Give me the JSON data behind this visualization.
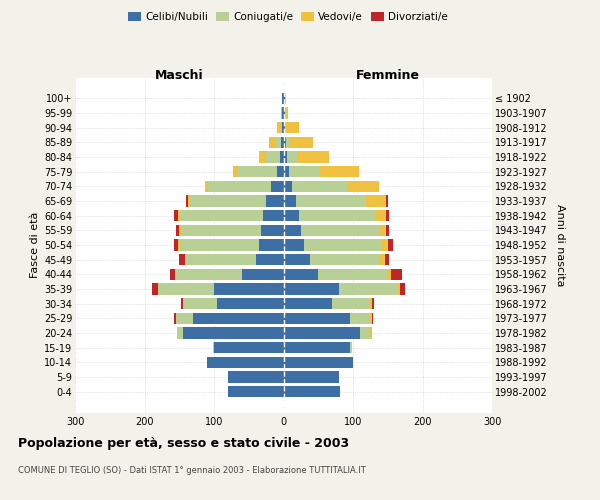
{
  "age_groups": [
    "0-4",
    "5-9",
    "10-14",
    "15-19",
    "20-24",
    "25-29",
    "30-34",
    "35-39",
    "40-44",
    "45-49",
    "50-54",
    "55-59",
    "60-64",
    "65-69",
    "70-74",
    "75-79",
    "80-84",
    "85-89",
    "90-94",
    "95-99",
    "100+"
  ],
  "birth_years": [
    "1998-2002",
    "1993-1997",
    "1988-1992",
    "1983-1987",
    "1978-1982",
    "1973-1977",
    "1968-1972",
    "1963-1967",
    "1958-1962",
    "1953-1957",
    "1948-1952",
    "1943-1947",
    "1938-1942",
    "1933-1937",
    "1928-1932",
    "1923-1927",
    "1918-1922",
    "1913-1917",
    "1908-1912",
    "1903-1907",
    "≤ 1902"
  ],
  "maschi": {
    "celibi": [
      80,
      80,
      110,
      100,
      145,
      130,
      95,
      100,
      60,
      40,
      35,
      33,
      30,
      25,
      18,
      10,
      5,
      3,
      2,
      2,
      2
    ],
    "coniugati": [
      0,
      0,
      0,
      2,
      8,
      25,
      50,
      80,
      95,
      100,
      115,
      115,
      120,
      110,
      90,
      55,
      20,
      8,
      2,
      0,
      0
    ],
    "vedovi": [
      0,
      0,
      0,
      0,
      0,
      0,
      0,
      1,
      1,
      2,
      2,
      2,
      2,
      3,
      5,
      8,
      10,
      10,
      5,
      2,
      0
    ],
    "divorziati": [
      0,
      0,
      0,
      0,
      0,
      2,
      3,
      8,
      8,
      8,
      5,
      5,
      5,
      2,
      0,
      0,
      0,
      0,
      0,
      0,
      0
    ]
  },
  "femmine": {
    "nubili": [
      82,
      80,
      100,
      95,
      110,
      95,
      70,
      80,
      50,
      38,
      30,
      25,
      22,
      18,
      12,
      8,
      5,
      3,
      2,
      2,
      2
    ],
    "coniugate": [
      0,
      0,
      0,
      3,
      15,
      30,
      55,
      85,
      100,
      100,
      112,
      112,
      110,
      100,
      80,
      45,
      15,
      5,
      2,
      0,
      0
    ],
    "vedove": [
      0,
      0,
      0,
      0,
      2,
      2,
      2,
      2,
      5,
      8,
      8,
      10,
      15,
      30,
      45,
      55,
      45,
      35,
      18,
      5,
      2
    ],
    "divorziate": [
      0,
      0,
      0,
      0,
      0,
      2,
      3,
      8,
      15,
      6,
      8,
      5,
      5,
      2,
      0,
      0,
      0,
      0,
      0,
      0,
      0
    ]
  },
  "colors": {
    "celibi_nubili": "#3d6fa5",
    "coniugati": "#b8cf96",
    "vedovi": "#f0c040",
    "divorziati": "#c0252a"
  },
  "xlim": 300,
  "title": "Popolazione per età, sesso e stato civile - 2003",
  "subtitle": "COMUNE DI TEGLIO (SO) - Dati ISTAT 1° gennaio 2003 - Elaborazione TUTTITALIA.IT",
  "ylabel_left": "Fasce di età",
  "ylabel_right": "Anni di nascita",
  "header_maschi": "Maschi",
  "header_femmine": "Femmine",
  "bg_color": "#f2f2ea",
  "plot_bg": "#ffffff",
  "grid_color": "#cccccc",
  "legend_labels": [
    "Celibi/Nubili",
    "Coniugati/e",
    "Vedovi/e",
    "Divorziati/e"
  ]
}
